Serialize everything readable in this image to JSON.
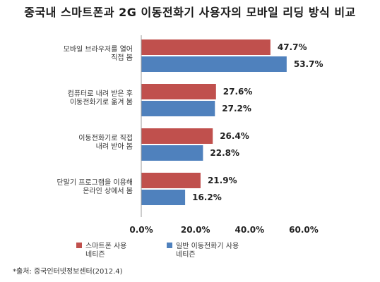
{
  "chart_data": {
    "type": "bar",
    "orientation": "horizontal",
    "title": "중국내 스마트폰과 2G 이동전화기 사용자의 모바일 리딩 방식 비교",
    "categories": [
      [
        "모바일 브라우저를 열어",
        "직접 봄"
      ],
      [
        "컴퓨터로 내려 받은 후",
        "이동전화기로 옮겨 봄"
      ],
      [
        "이동전화기로 직접",
        "내려 받아 봄"
      ],
      [
        "단말기 프로그램을 이용해",
        "온라인 상에서 봄"
      ]
    ],
    "series": [
      {
        "name": [
          "스마트폰 사용",
          "네티즌"
        ],
        "values": [
          47.7,
          27.6,
          26.4,
          21.9
        ],
        "labels": [
          "47.7%",
          "27.6%",
          "26.4%",
          "21.9%"
        ]
      },
      {
        "name": [
          "일반 이동전화기 사용",
          "네티즌"
        ],
        "values": [
          53.7,
          27.2,
          22.8,
          16.2
        ],
        "labels": [
          "53.7%",
          "27.2%",
          "22.8%",
          "16.2%"
        ]
      }
    ],
    "xlim": [
      0,
      60
    ],
    "xticks": [
      "0.0%",
      "20.0%",
      "40.0%",
      "60.0%"
    ],
    "xtick_values": [
      0,
      20,
      40,
      60
    ],
    "legend_position": "bottom",
    "colors": [
      "#c0504d",
      "#4f81bd"
    ],
    "grid": false
  },
  "source": "*출처: 중국인터넷정보센터(2012.4)"
}
